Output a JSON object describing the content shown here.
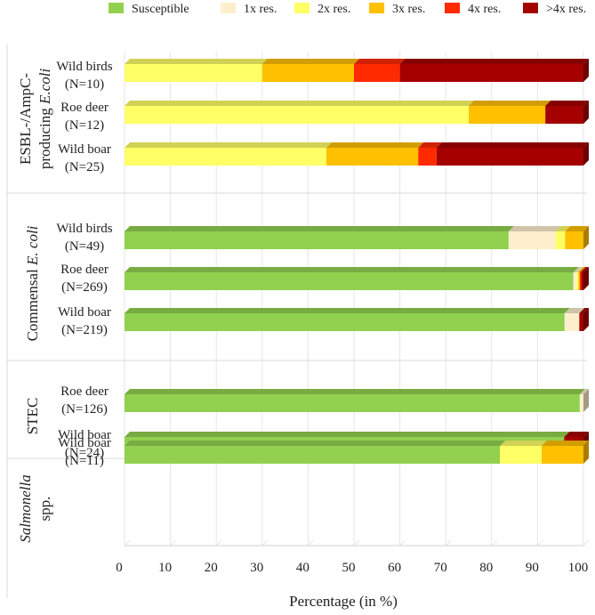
{
  "chart_data": {
    "type": "bar",
    "orientation": "horizontal",
    "stacked": true,
    "xlabel": "Percentage (in %)",
    "xlim": [
      0,
      100
    ],
    "xticks": [
      0,
      10,
      20,
      30,
      40,
      50,
      60,
      70,
      80,
      90,
      100
    ],
    "legend": {
      "position": "top",
      "entries": [
        {
          "label": "Susceptible",
          "color": "#92d050"
        },
        {
          "label": "1x res.",
          "color": "#fdefcc"
        },
        {
          "label": "2x res.",
          "color": "#ffff66"
        },
        {
          "label": "3x res.",
          "color": "#ffc000"
        },
        {
          "label": "4x res.",
          "color": "#ff2a00"
        },
        {
          "label": ">4x res.",
          "color": "#a50000"
        }
      ]
    },
    "groups": [
      {
        "label_lines": [
          {
            "text": "ESBL-/AmpC-",
            "italic": ""
          },
          {
            "text": "producing ",
            "italic": "E.coli"
          }
        ],
        "bars": [
          {
            "name": "Wild birds",
            "n": "(N=10)",
            "values": [
              0,
              0,
              30,
              20,
              10,
              40
            ]
          },
          {
            "name": "Roe deer",
            "n": "(N=12)",
            "values": [
              0,
              0,
              75,
              16.7,
              0,
              8.3
            ]
          },
          {
            "name": "Wild boar",
            "n": "(N=25)",
            "values": [
              0,
              0,
              44,
              20,
              4,
              32
            ]
          }
        ]
      },
      {
        "label_lines": [
          {
            "text": "Commensal ",
            "italic": "E. coli"
          }
        ],
        "bars": [
          {
            "name": "Wild birds",
            "n": "(N=49)",
            "values": [
              83.7,
              10.2,
              2.1,
              4,
              0,
              0
            ]
          },
          {
            "name": "Roe deer",
            "n": "(N=269)",
            "values": [
              97.8,
              0.7,
              0.4,
              0.3,
              0.3,
              0.5
            ]
          },
          {
            "name": "Wild boar",
            "n": "(N=219)",
            "values": [
              95.9,
              3.2,
              0,
              0,
              0,
              0.9
            ]
          }
        ]
      },
      {
        "label_lines": [
          {
            "text": "STEC",
            "italic": ""
          }
        ],
        "bars": [
          {
            "name": "Roe deer",
            "n": "(N=126)",
            "values": [
              99.2,
              0.8,
              0,
              0,
              0,
              0
            ]
          },
          {
            "name": "Wild boar",
            "n": "(N=24)",
            "values": [
              95.8,
              0,
              0,
              0,
              0,
              4.2
            ]
          }
        ]
      },
      {
        "label_lines": [
          {
            "text": "",
            "italic": "Salmonella"
          },
          {
            "text": " spp.",
            "italic": ""
          }
        ],
        "bars": [
          {
            "name": "Wild boar",
            "n": "(N=11)",
            "values": [
              81.8,
              0,
              9.1,
              9.1,
              0,
              0
            ]
          }
        ]
      }
    ]
  }
}
